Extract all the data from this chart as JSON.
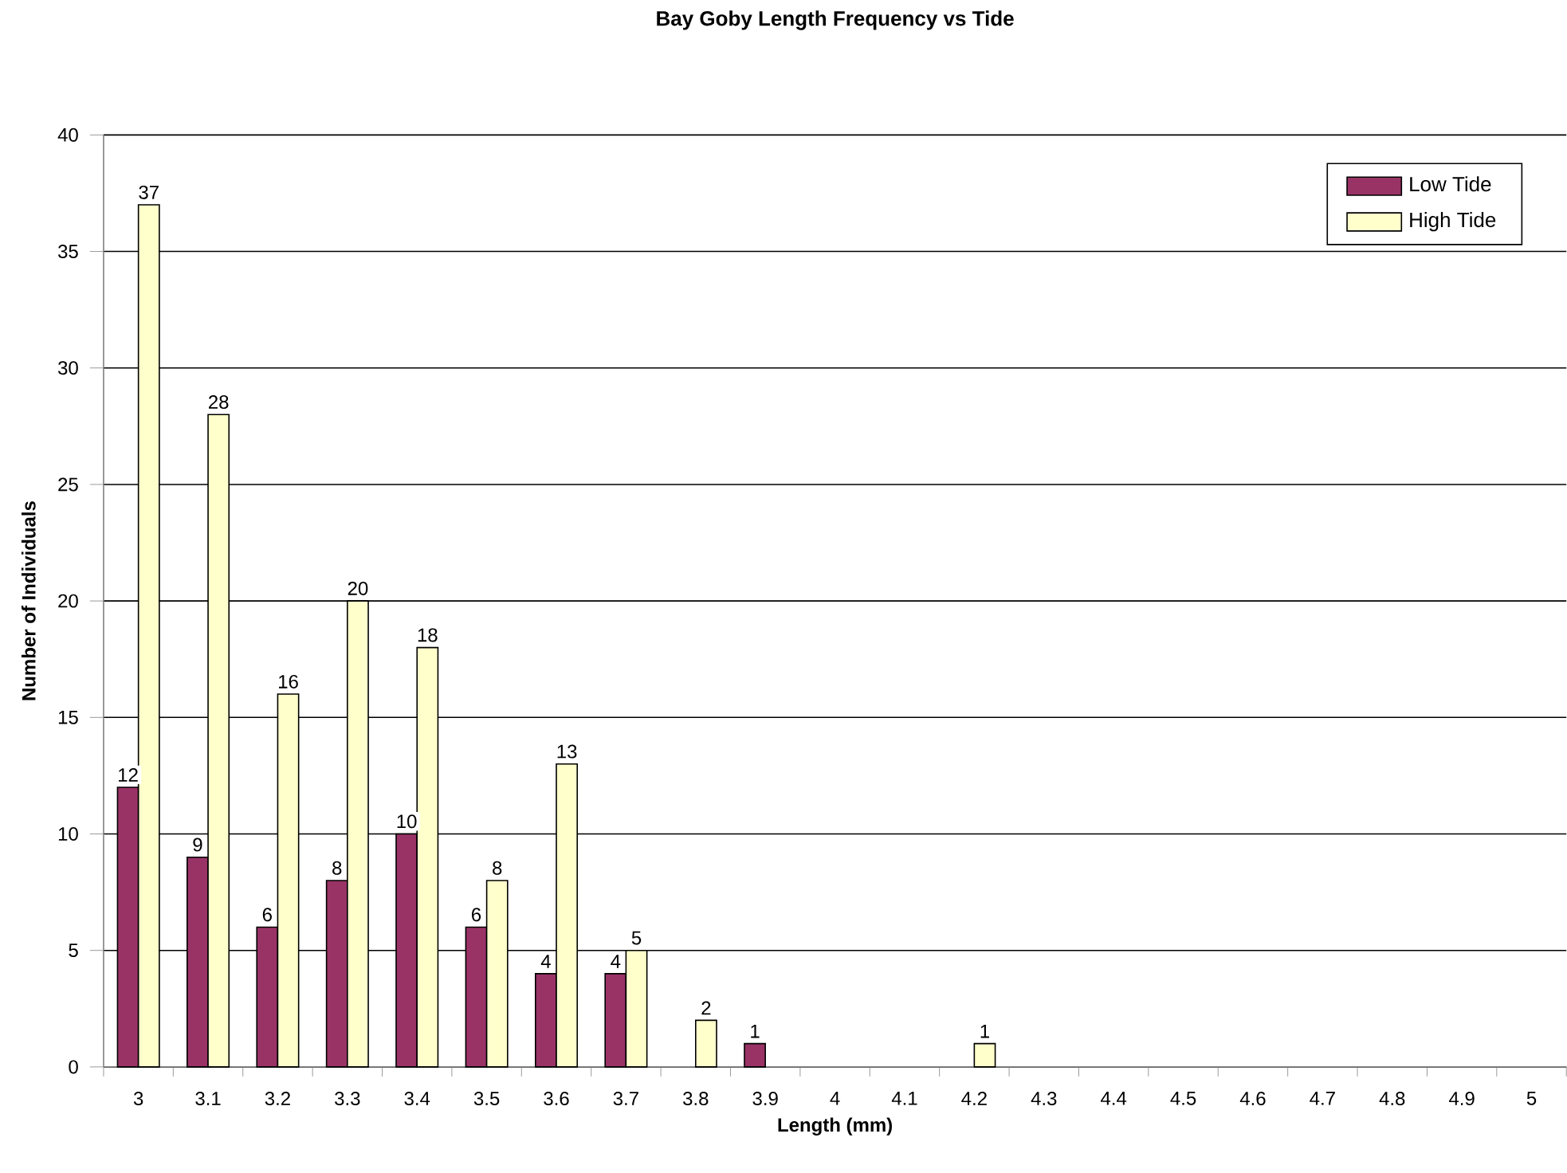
{
  "chart_data": {
    "type": "bar",
    "title": "Bay Goby Length Frequency vs Tide",
    "xlabel": "Length (mm)",
    "ylabel": "Number of Individuals",
    "categories": [
      "3",
      "3.1",
      "3.2",
      "3.3",
      "3.4",
      "3.5",
      "3.6",
      "3.7",
      "3.8",
      "3.9",
      "4",
      "4.1",
      "4.2",
      "4.3",
      "4.4",
      "4.5",
      "4.6",
      "4.7",
      "4.8",
      "4.9",
      "5"
    ],
    "series": [
      {
        "name": "Low Tide",
        "color": "#993366",
        "values": [
          12,
          9,
          6,
          8,
          10,
          6,
          4,
          4,
          0,
          1,
          0,
          0,
          0,
          0,
          0,
          0,
          0,
          0,
          0,
          0,
          0
        ],
        "value_labels": [
          "12",
          "9",
          "6",
          "8",
          "10",
          "6",
          "4",
          "4",
          null,
          "1",
          null,
          null,
          null,
          null,
          null,
          null,
          null,
          null,
          null,
          null,
          null
        ]
      },
      {
        "name": "High Tide",
        "color": "#ffffcc",
        "values": [
          37,
          28,
          16,
          20,
          18,
          8,
          13,
          5,
          2,
          0,
          0,
          0,
          1,
          0,
          0,
          0,
          0,
          0,
          0,
          0,
          0
        ],
        "value_labels": [
          "37",
          "28",
          "16",
          "20",
          "18",
          "8",
          "13",
          "5",
          "2",
          null,
          null,
          null,
          "1",
          null,
          null,
          null,
          null,
          null,
          null,
          null,
          null
        ]
      }
    ],
    "ylim": [
      0,
      40
    ],
    "yticks": [
      0,
      5,
      10,
      15,
      20,
      25,
      30,
      35,
      40
    ],
    "grid": "y",
    "legend": "top right"
  }
}
